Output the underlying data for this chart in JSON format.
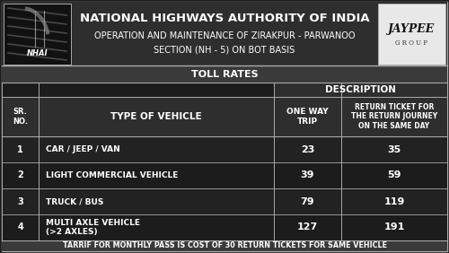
{
  "title_line1": "NATIONAL HIGHWAYS AUTHORITY OF INDIA",
  "title_line2": "OPERATION AND MAINTENANCE OF ZIRAKPUR - PARWANOO",
  "title_line3": "SECTION (NH - 5) ON BOT BASIS",
  "section_title": "TOLL RATES",
  "description_header": "DESCRIPTION",
  "rows": [
    [
      "1",
      "CAR / JEEP / VAN",
      "23",
      "35"
    ],
    [
      "2",
      "LIGHT COMMERCIAL VEHICLE",
      "39",
      "59"
    ],
    [
      "3",
      "TRUCK / BUS",
      "79",
      "119"
    ],
    [
      "4",
      "MULTI AXLE VEHICLE\n(>2 AXLES)",
      "127",
      "191"
    ]
  ],
  "footer": "TARRIF FOR MONTHLY PASS IS COST OF 30 RETURN TICKETS FOR SAME VEHICLE",
  "bg_dark": "#1c1c1c",
  "bg_medium": "#2e2e2e",
  "bg_lighter": "#3a3a3a",
  "cell_dark": "#222222",
  "text_white": "#ffffff",
  "border_color": "#aaaaaa",
  "jaypee_bg": "#e8e8e8",
  "nhai_bg": "#111111"
}
